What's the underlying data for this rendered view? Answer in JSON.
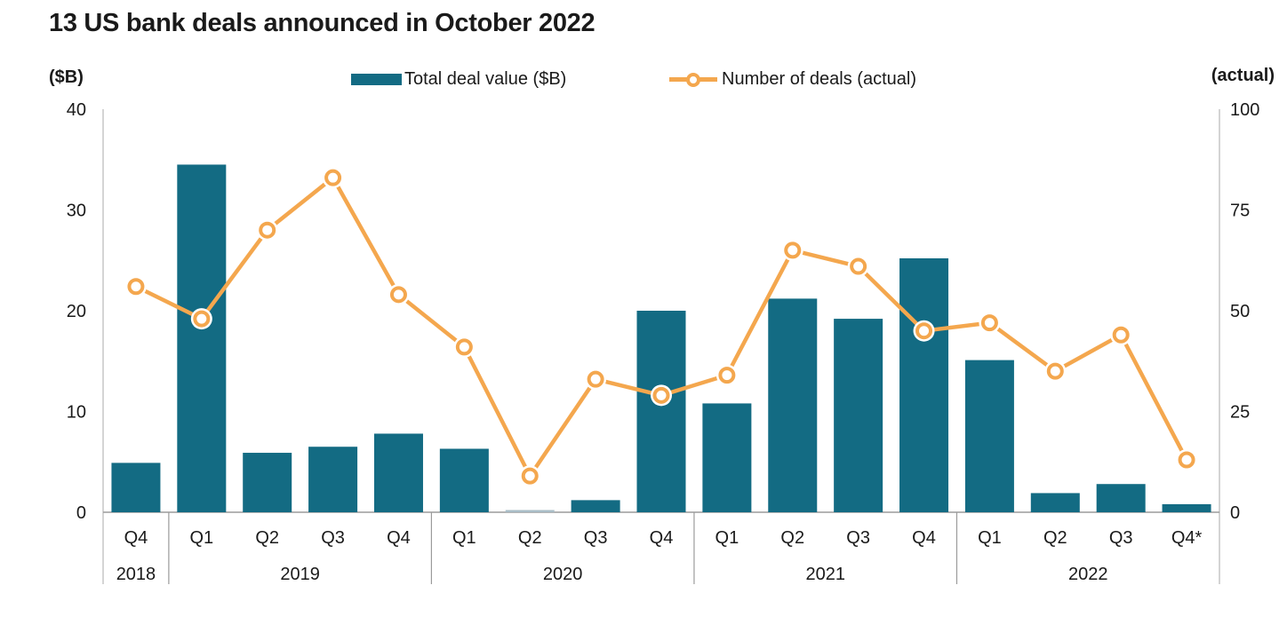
{
  "title": "13 US bank deals announced in October 2022",
  "legend": {
    "bar_label": "Total deal value ($B)",
    "line_label": "Number of deals (actual)"
  },
  "colors": {
    "bar": "#136b83",
    "bar_muted": "#a9bdc6",
    "line": "#f4a74e",
    "text": "#1a1a1a",
    "axis_side": "#c6c6c6",
    "axis_base": "#9b9b9b"
  },
  "chart_data": {
    "type": "bar",
    "subtype": "combo bar + line, dual axis",
    "title": "13 US bank deals announced in October 2022",
    "categories": [
      "Q4",
      "Q1",
      "Q2",
      "Q3",
      "Q4",
      "Q1",
      "Q2",
      "Q3",
      "Q4",
      "Q1",
      "Q2",
      "Q3",
      "Q4",
      "Q1",
      "Q2",
      "Q3",
      "Q4*"
    ],
    "year_groups": [
      {
        "label": "2018",
        "count": 1
      },
      {
        "label": "2019",
        "count": 4
      },
      {
        "label": "2020",
        "count": 4
      },
      {
        "label": "2021",
        "count": 4
      },
      {
        "label": "2022",
        "count": 4
      }
    ],
    "series": [
      {
        "name": "Total deal value ($B)",
        "type": "bar",
        "axis": "left",
        "values": [
          4.9,
          34.5,
          5.9,
          6.5,
          7.8,
          6.3,
          0.2,
          1.2,
          20,
          10.8,
          21.2,
          19.2,
          25.2,
          15.1,
          1.9,
          2.8,
          0.8
        ]
      },
      {
        "name": "Number of deals (actual)",
        "type": "line",
        "axis": "right",
        "values": [
          56,
          48,
          70,
          83,
          54,
          41,
          9,
          33,
          29,
          34,
          65,
          61,
          45,
          47,
          35,
          44,
          13
        ]
      }
    ],
    "muted_bar_index": 6,
    "left_axis": {
      "label": "($B)",
      "min": 0,
      "max": 40,
      "ticks": [
        0,
        10,
        20,
        30,
        40
      ]
    },
    "right_axis": {
      "label": "(actual)",
      "min": 0,
      "max": 100,
      "ticks": [
        0,
        25,
        50,
        75,
        100
      ]
    },
    "grid": "off",
    "legend_position": "top-center"
  }
}
